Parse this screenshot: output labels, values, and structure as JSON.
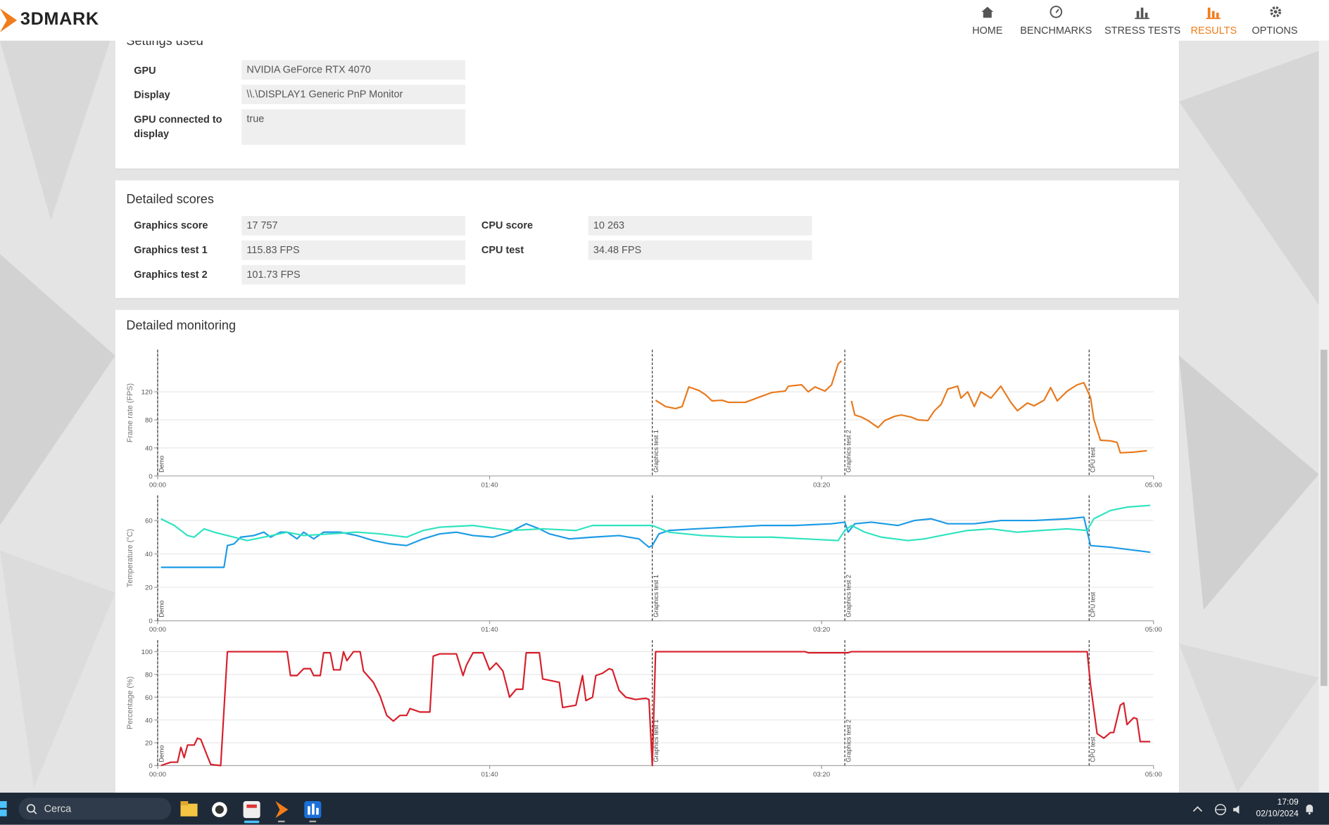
{
  "app": {
    "logo": "3DMARK"
  },
  "nav": [
    "HOME",
    "BENCHMARKS",
    "STRESS TESTS",
    "RESULTS",
    "OPTIONS"
  ],
  "settings_used": {
    "title": "Settings used",
    "rows": [
      [
        "GPU",
        "NVIDIA GeForce RTX 4070"
      ],
      [
        "Display",
        "\\\\.\\DISPLAY1 Generic PnP Monitor"
      ],
      [
        "GPU connected to display",
        "true"
      ]
    ]
  },
  "detailed_scores": {
    "title": "Detailed scores",
    "rows": [
      [
        "Graphics score",
        "17 757"
      ],
      [
        "Graphics test 1",
        "115.83 FPS"
      ],
      [
        "Graphics test 2",
        "101.73 FPS"
      ],
      [
        "CPU score",
        "10 263"
      ],
      [
        "CPU test",
        "34.48 FPS"
      ]
    ]
  },
  "detailed_monitoring": {
    "title": "Detailed monitoring"
  },
  "chart_data": [
    {
      "type": "line",
      "y_label": "Frame rate (FPS)",
      "xlim": [
        0,
        300
      ],
      "xticks": [
        {
          "value": 0,
          "label": "00:00"
        },
        {
          "value": 100,
          "label": "01:40"
        },
        {
          "value": 200,
          "label": "03:20"
        },
        {
          "value": 300,
          "label": "05:00"
        }
      ],
      "ylim": [
        0,
        180
      ],
      "yticks": [
        0,
        40,
        80,
        120
      ],
      "grid": true,
      "markers": [
        {
          "x": 0,
          "label": "Demo"
        },
        {
          "x": 149,
          "label": "Graphics test 1"
        },
        {
          "x": 207,
          "label": "Graphics test 2"
        },
        {
          "x": 280.6,
          "label": "CPU test"
        }
      ],
      "series": [
        {
          "color": "#e8791c",
          "x": [
            150,
            153,
            156,
            158,
            160,
            163,
            165,
            167,
            170,
            172,
            177,
            181,
            185,
            189,
            190,
            194,
            196,
            198,
            201,
            203,
            205,
            206,
            207,
            209,
            210,
            212,
            214,
            217,
            219,
            222,
            224,
            227,
            229,
            232,
            234,
            236,
            238,
            241,
            242,
            244,
            246,
            248,
            251,
            254,
            257,
            259,
            262,
            264,
            267,
            269,
            271,
            274,
            277,
            279,
            281,
            282,
            284,
            287,
            289,
            290,
            294,
            298
          ],
          "values": [
            108,
            99,
            96,
            99,
            127,
            122,
            116,
            107,
            108,
            105,
            105,
            112,
            119,
            121,
            128,
            130,
            120,
            127,
            121,
            130,
            160,
            164,
            null,
            107,
            87,
            84,
            79,
            69,
            79,
            85,
            87,
            84,
            80,
            79,
            93,
            102,
            124,
            128,
            111,
            120,
            99,
            120,
            111,
            128,
            105,
            93,
            104,
            100,
            108,
            126,
            107,
            121,
            130,
            133,
            112,
            81,
            51,
            50,
            48,
            33,
            34,
            36
          ]
        }
      ]
    },
    {
      "type": "line",
      "y_label": "Temperature (°C)",
      "xlim": [
        0,
        300
      ],
      "xticks": [
        {
          "value": 0,
          "label": "00:00"
        },
        {
          "value": 100,
          "label": "01:40"
        },
        {
          "value": 200,
          "label": "03:20"
        },
        {
          "value": 300,
          "label": "05:00"
        }
      ],
      "ylim": [
        0,
        75
      ],
      "yticks": [
        0,
        20,
        40,
        60
      ],
      "grid": true,
      "markers": [
        {
          "x": 0,
          "label": "Demo"
        },
        {
          "x": 149,
          "label": "Graphics test 1"
        },
        {
          "x": 207,
          "label": "Graphics test 2"
        },
        {
          "x": 280.6,
          "label": "CPU test"
        }
      ],
      "series": [
        {
          "color": "#1c9be6",
          "x": [
            1,
            20,
            21,
            23,
            25,
            29,
            32,
            34,
            37,
            39,
            42,
            44,
            47,
            50,
            55,
            60,
            65,
            70,
            75,
            80,
            85,
            90,
            95,
            101,
            106,
            111,
            115,
            118,
            124,
            131,
            139,
            145,
            148,
            149,
            151,
            154,
            162,
            172,
            182,
            192,
            203,
            207,
            208,
            210,
            215,
            223,
            228,
            233,
            238,
            246,
            254,
            264,
            274,
            279,
            281,
            287,
            295,
            299
          ],
          "values": [
            32,
            32,
            45,
            46,
            50,
            51,
            53,
            50,
            53,
            53,
            49,
            53,
            49,
            53,
            53,
            51,
            48,
            46,
            45,
            49,
            52,
            53,
            51,
            50,
            53,
            58,
            55,
            52,
            49,
            50,
            51,
            49,
            44,
            45,
            52,
            54,
            55,
            56,
            57,
            57,
            58,
            59,
            53,
            58,
            59,
            57,
            60,
            61,
            58,
            58,
            60,
            60,
            61,
            62,
            45,
            44,
            42,
            41
          ]
        },
        {
          "color": "#2fe3c0",
          "x": [
            1,
            5,
            9,
            11,
            14,
            17,
            21,
            27,
            32,
            39,
            44,
            52,
            60,
            67,
            75,
            80,
            85,
            95,
            106,
            116,
            126,
            131,
            141,
            149,
            154,
            164,
            175,
            185,
            195,
            205,
            207,
            209,
            213,
            218,
            226,
            231,
            236,
            244,
            251,
            259,
            266,
            274,
            280,
            282,
            287,
            292,
            299
          ],
          "values": [
            61,
            57,
            51,
            50,
            55,
            53,
            51,
            48,
            50,
            53,
            51,
            52,
            53,
            52,
            50,
            54,
            56,
            57,
            54,
            55,
            54,
            57,
            57,
            57,
            53,
            51,
            50,
            50,
            49,
            48,
            54,
            57,
            53,
            50,
            48,
            49,
            51,
            54,
            55,
            53,
            54,
            55,
            54,
            61,
            66,
            68,
            69
          ]
        }
      ]
    },
    {
      "type": "line",
      "y_label": "Percentage (%)",
      "xlim": [
        0,
        300
      ],
      "xticks": [
        {
          "value": 0,
          "label": "00:00"
        },
        {
          "value": 100,
          "label": "01:40"
        },
        {
          "value": 200,
          "label": "03:20"
        },
        {
          "value": 300,
          "label": "05:00"
        }
      ],
      "ylim": [
        0,
        110
      ],
      "yticks": [
        0,
        20,
        40,
        60,
        80,
        100
      ],
      "grid": true,
      "markers": [
        {
          "x": 0,
          "label": "Demo"
        },
        {
          "x": 149,
          "label": "Graphics test 1"
        },
        {
          "x": 207,
          "label": "Graphics test 2"
        },
        {
          "x": 280.6,
          "label": "CPU test"
        }
      ],
      "series": [
        {
          "color": "#d61f2a",
          "x": [
            1,
            4,
            6,
            7,
            8,
            9,
            11,
            12,
            13,
            15,
            16,
            19,
            21,
            39,
            40,
            42,
            44,
            46,
            47,
            49,
            50,
            52,
            53,
            55,
            56,
            57,
            59,
            61,
            62,
            65,
            67,
            69,
            71,
            73,
            75,
            76,
            79,
            82,
            83,
            85,
            90,
            92,
            93,
            95,
            98,
            100,
            102,
            104,
            106,
            108,
            110,
            111,
            115,
            116,
            121,
            122,
            126,
            128,
            129,
            131,
            132,
            134,
            136,
            137,
            139,
            141,
            144,
            147,
            148,
            149,
            150,
            195,
            196,
            208,
            209,
            280,
            281,
            283,
            285,
            287,
            288,
            290,
            291,
            292,
            294,
            295,
            296,
            299
          ],
          "values": [
            0,
            3,
            3,
            16,
            7,
            18,
            18,
            24,
            23,
            8,
            1,
            0,
            100,
            100,
            79,
            79,
            85,
            85,
            79,
            79,
            99,
            99,
            84,
            84,
            100,
            92,
            100,
            100,
            83,
            73,
            61,
            44,
            39,
            44,
            44,
            50,
            47,
            47,
            96,
            98,
            98,
            79,
            88,
            99,
            99,
            84,
            90,
            83,
            60,
            67,
            67,
            99,
            99,
            76,
            73,
            51,
            53,
            79,
            57,
            60,
            79,
            81,
            85,
            84,
            66,
            60,
            58,
            59,
            58,
            0,
            100,
            100,
            99,
            99,
            100,
            100,
            71,
            28,
            24,
            29,
            29,
            53,
            55,
            36,
            42,
            41,
            21,
            21
          ]
        }
      ]
    }
  ],
  "taskbar": {
    "search": "Cerca",
    "time": "17:09",
    "date": "02/10/2024"
  }
}
